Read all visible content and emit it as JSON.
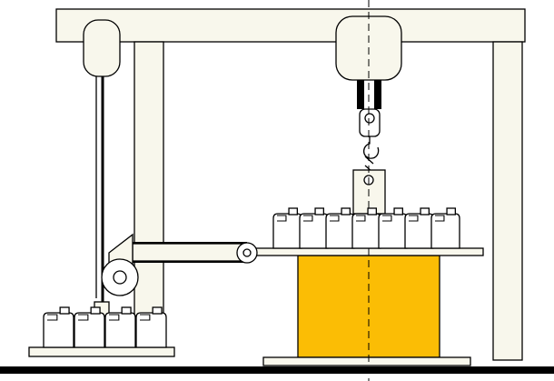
{
  "diagram": {
    "type": "mechanical-illustration",
    "colors": {
      "background": "#ffffff",
      "line": "#000000",
      "structure_fill": "#f8f7ec",
      "load_block": "#fbbd05",
      "ground": "#000000"
    },
    "icons": [
      "overhead-frame",
      "left-pulley-housing",
      "right-hoist-housing",
      "lifting-hook",
      "tension-roller",
      "canister-group",
      "weight-block",
      "center-axis"
    ],
    "counts": {
      "canisters_on_table": 7,
      "canisters_on_left_platform": 4
    }
  }
}
